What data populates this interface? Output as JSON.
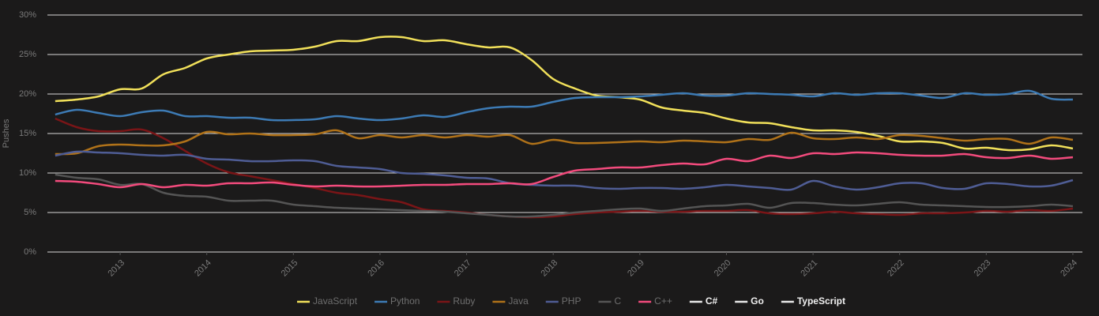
{
  "chart_data": {
    "type": "line",
    "y_label": "Pushes",
    "x": [
      2012.25,
      2012.5,
      2012.75,
      2013,
      2013.25,
      2013.5,
      2013.75,
      2014,
      2014.25,
      2014.5,
      2014.75,
      2015,
      2015.25,
      2015.5,
      2015.75,
      2016,
      2016.25,
      2016.5,
      2016.75,
      2017,
      2017.25,
      2017.5,
      2017.75,
      2018,
      2018.25,
      2018.5,
      2018.75,
      2019,
      2019.25,
      2019.5,
      2019.75,
      2020,
      2020.25,
      2020.5,
      2020.75,
      2021,
      2021.25,
      2021.5,
      2021.75,
      2022,
      2022.25,
      2022.5,
      2022.75,
      2023,
      2023.25,
      2023.5,
      2023.75,
      2024
    ],
    "xlim": [
      2012.16,
      2024.11
    ],
    "xticks": [
      2013,
      2014,
      2015,
      2016,
      2017,
      2018,
      2019,
      2020,
      2021,
      2022,
      2023,
      2024
    ],
    "ylim": [
      0,
      30
    ],
    "yticks": [
      {
        "value": 0,
        "label": "0%"
      },
      {
        "value": 5,
        "label": "5%"
      },
      {
        "value": 10,
        "label": "10%"
      },
      {
        "value": 15,
        "label": "15%"
      },
      {
        "value": 20,
        "label": "20%"
      },
      {
        "value": 25,
        "label": "25%"
      },
      {
        "value": 30,
        "label": "30%"
      }
    ],
    "grid": true,
    "legend": "bottom",
    "series": [
      {
        "name": "JavaScript",
        "color": "#f1e05a",
        "values": [
          19.1,
          19.3,
          19.7,
          20.6,
          20.7,
          22.5,
          23.3,
          24.5,
          25.0,
          25.4,
          25.5,
          25.6,
          26.0,
          26.7,
          26.7,
          27.2,
          27.2,
          26.7,
          26.8,
          26.3,
          25.9,
          25.9,
          24.3,
          21.9,
          20.7,
          19.8,
          19.6,
          19.3,
          18.3,
          17.9,
          17.6,
          16.9,
          16.4,
          16.3,
          15.8,
          15.4,
          15.4,
          15.2,
          14.7,
          14.0,
          14.0,
          13.8,
          13.1,
          13.2,
          12.9,
          13.0,
          13.5,
          13.1
        ]
      },
      {
        "name": "Python",
        "color": "#3d7bb5",
        "values": [
          17.4,
          18.0,
          17.6,
          17.2,
          17.7,
          17.9,
          17.2,
          17.2,
          17.0,
          17.0,
          16.7,
          16.7,
          16.8,
          17.2,
          16.9,
          16.7,
          16.9,
          17.3,
          17.1,
          17.7,
          18.2,
          18.4,
          18.4,
          19.0,
          19.5,
          19.6,
          19.6,
          19.7,
          19.9,
          20.1,
          19.8,
          19.8,
          20.1,
          20.0,
          19.9,
          19.7,
          20.1,
          19.9,
          20.1,
          20.1,
          19.8,
          19.5,
          20.1,
          19.9,
          20.0,
          20.4,
          19.4,
          19.3
        ]
      },
      {
        "name": "Ruby",
        "color": "#7a1517",
        "values": [
          16.9,
          15.8,
          15.3,
          15.3,
          15.5,
          14.4,
          12.8,
          11.2,
          10.1,
          9.6,
          9.1,
          8.6,
          8.1,
          7.5,
          7.2,
          6.7,
          6.3,
          5.4,
          5.2,
          5.0,
          4.7,
          4.5,
          4.4,
          4.5,
          4.8,
          5.0,
          5.1,
          5.2,
          5.1,
          5.1,
          5.2,
          5.2,
          5.3,
          4.9,
          4.8,
          4.9,
          5.1,
          4.9,
          4.8,
          4.7,
          4.9,
          4.9,
          5.0,
          5.2,
          5.1,
          5.3,
          5.2,
          5.5
        ]
      },
      {
        "name": "Java",
        "color": "#b07219",
        "values": [
          12.4,
          12.5,
          13.4,
          13.6,
          13.5,
          13.5,
          14.0,
          15.2,
          14.9,
          15.0,
          14.8,
          14.8,
          14.9,
          15.4,
          14.4,
          14.8,
          14.5,
          14.8,
          14.5,
          14.8,
          14.6,
          14.8,
          13.7,
          14.2,
          13.8,
          13.8,
          13.9,
          14.0,
          13.9,
          14.1,
          14.0,
          13.9,
          14.3,
          14.2,
          15.1,
          14.4,
          14.3,
          14.5,
          14.3,
          14.8,
          14.7,
          14.4,
          14.1,
          14.3,
          14.3,
          13.7,
          14.5,
          14.2
        ]
      },
      {
        "name": "PHP",
        "color": "#4f5d95",
        "values": [
          12.2,
          12.7,
          12.6,
          12.5,
          12.3,
          12.2,
          12.3,
          11.8,
          11.7,
          11.5,
          11.5,
          11.6,
          11.5,
          10.9,
          10.7,
          10.5,
          10.0,
          9.9,
          9.7,
          9.4,
          9.3,
          8.7,
          8.5,
          8.4,
          8.4,
          8.1,
          8.0,
          8.1,
          8.1,
          8.0,
          8.2,
          8.5,
          8.3,
          8.1,
          7.9,
          9.0,
          8.3,
          7.9,
          8.2,
          8.7,
          8.7,
          8.1,
          8.0,
          8.7,
          8.6,
          8.3,
          8.4,
          9.1
        ]
      },
      {
        "name": "C",
        "color": "#555555",
        "values": [
          9.8,
          9.4,
          9.2,
          8.5,
          8.6,
          7.5,
          7.1,
          7.0,
          6.5,
          6.5,
          6.5,
          6.0,
          5.8,
          5.6,
          5.5,
          5.4,
          5.3,
          5.2,
          5.1,
          4.9,
          4.7,
          4.5,
          4.5,
          4.7,
          5.0,
          5.2,
          5.4,
          5.5,
          5.2,
          5.5,
          5.8,
          5.9,
          6.1,
          5.6,
          6.2,
          6.2,
          6.0,
          5.9,
          6.1,
          6.3,
          6.0,
          5.9,
          5.8,
          5.7,
          5.7,
          5.8,
          6.0,
          5.8
        ]
      },
      {
        "name": "C++",
        "color": "#f34b7d",
        "values": [
          9.0,
          8.9,
          8.6,
          8.2,
          8.6,
          8.2,
          8.5,
          8.4,
          8.7,
          8.7,
          8.8,
          8.5,
          8.3,
          8.4,
          8.3,
          8.3,
          8.4,
          8.5,
          8.5,
          8.6,
          8.6,
          8.7,
          8.6,
          9.5,
          10.3,
          10.5,
          10.7,
          10.7,
          11.0,
          11.2,
          11.1,
          11.8,
          11.5,
          12.2,
          11.9,
          12.5,
          12.4,
          12.6,
          12.5,
          12.3,
          12.2,
          12.2,
          12.4,
          12.0,
          11.9,
          12.2,
          11.8,
          12.0
        ]
      },
      {
        "name": "C#",
        "color": "#e8e8e8",
        "visible": false
      },
      {
        "name": "Go",
        "color": "#e8e8e8",
        "visible": false
      },
      {
        "name": "TypeScript",
        "color": "#e8e8e8",
        "visible": false
      }
    ]
  }
}
